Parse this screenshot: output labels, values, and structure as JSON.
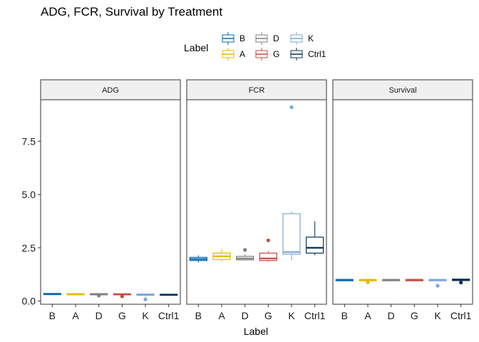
{
  "chart_data": {
    "type": "boxplot",
    "title": "ADG, FCR, Survival by Treatment",
    "xlabel": "Label",
    "ylabel": "",
    "ylim": [
      -0.15,
      9.45
    ],
    "yticks": [
      0.0,
      2.5,
      5.0,
      7.5
    ],
    "ytick_labels": [
      "0.0",
      "2.5",
      "5.0",
      "7.5"
    ],
    "categories": [
      "B",
      "A",
      "D",
      "G",
      "K",
      "Ctrl1"
    ],
    "colors": {
      "B": "#0868ac",
      "A": "#e6b800",
      "D": "#808080",
      "G": "#c94a40",
      "K": "#7ba7d7",
      "Ctrl1": "#08304f"
    },
    "legend": {
      "title": "Label",
      "placement": "top",
      "entries": [
        "B",
        "D",
        "K",
        "A",
        "G",
        "Ctrl1"
      ]
    },
    "panels": [
      {
        "name": "ADG",
        "boxes": [
          {
            "label": "B",
            "min": 0.33,
            "q1": 0.33,
            "median": 0.34,
            "q3": 0.35,
            "max": 0.36,
            "outliers": []
          },
          {
            "label": "A",
            "min": 0.32,
            "q1": 0.32,
            "median": 0.33,
            "q3": 0.34,
            "max": 0.35,
            "outliers": []
          },
          {
            "label": "D",
            "min": 0.32,
            "q1": 0.32,
            "median": 0.33,
            "q3": 0.34,
            "max": 0.35,
            "outliers": [
              0.26
            ]
          },
          {
            "label": "G",
            "min": 0.3,
            "q1": 0.31,
            "median": 0.32,
            "q3": 0.34,
            "max": 0.35,
            "outliers": [
              0.22
            ]
          },
          {
            "label": "K",
            "min": 0.2,
            "q1": 0.27,
            "median": 0.3,
            "q3": 0.33,
            "max": 0.35,
            "outliers": [
              0.08
            ]
          },
          {
            "label": "Ctrl1",
            "min": 0.27,
            "q1": 0.28,
            "median": 0.3,
            "q3": 0.32,
            "max": 0.33,
            "outliers": []
          }
        ]
      },
      {
        "name": "FCR",
        "boxes": [
          {
            "label": "B",
            "min": 1.8,
            "q1": 1.9,
            "median": 1.97,
            "q3": 2.05,
            "max": 2.15,
            "outliers": []
          },
          {
            "label": "A",
            "min": 1.85,
            "q1": 1.95,
            "median": 2.1,
            "q3": 2.25,
            "max": 2.45,
            "outliers": []
          },
          {
            "label": "D",
            "min": 1.9,
            "q1": 1.93,
            "median": 2.0,
            "q3": 2.1,
            "max": 2.2,
            "outliers": [
              2.4
            ]
          },
          {
            "label": "G",
            "min": 1.85,
            "q1": 1.9,
            "median": 2.0,
            "q3": 2.25,
            "max": 2.35,
            "outliers": [
              2.85
            ]
          },
          {
            "label": "K",
            "min": 1.9,
            "q1": 2.2,
            "median": 2.3,
            "q3": 4.1,
            "max": 4.2,
            "outliers": [
              9.1
            ]
          },
          {
            "label": "Ctrl1",
            "min": 2.15,
            "q1": 2.25,
            "median": 2.5,
            "q3": 3.0,
            "max": 3.75,
            "outliers": []
          }
        ]
      },
      {
        "name": "Survival",
        "boxes": [
          {
            "label": "B",
            "min": 1.0,
            "q1": 1.0,
            "median": 1.0,
            "q3": 1.0,
            "max": 1.0,
            "outliers": []
          },
          {
            "label": "A",
            "min": 1.0,
            "q1": 1.0,
            "median": 1.0,
            "q3": 1.0,
            "max": 1.0,
            "outliers": [
              0.88
            ]
          },
          {
            "label": "D",
            "min": 1.0,
            "q1": 1.0,
            "median": 1.0,
            "q3": 1.0,
            "max": 1.0,
            "outliers": []
          },
          {
            "label": "G",
            "min": 1.0,
            "q1": 1.0,
            "median": 1.0,
            "q3": 1.0,
            "max": 1.0,
            "outliers": []
          },
          {
            "label": "K",
            "min": 1.0,
            "q1": 1.0,
            "median": 1.0,
            "q3": 1.0,
            "max": 1.0,
            "outliers": [
              0.72
            ]
          },
          {
            "label": "Ctrl1",
            "min": 0.95,
            "q1": 0.96,
            "median": 1.0,
            "q3": 1.03,
            "max": 1.05,
            "outliers": [
              0.87
            ]
          }
        ]
      }
    ]
  }
}
